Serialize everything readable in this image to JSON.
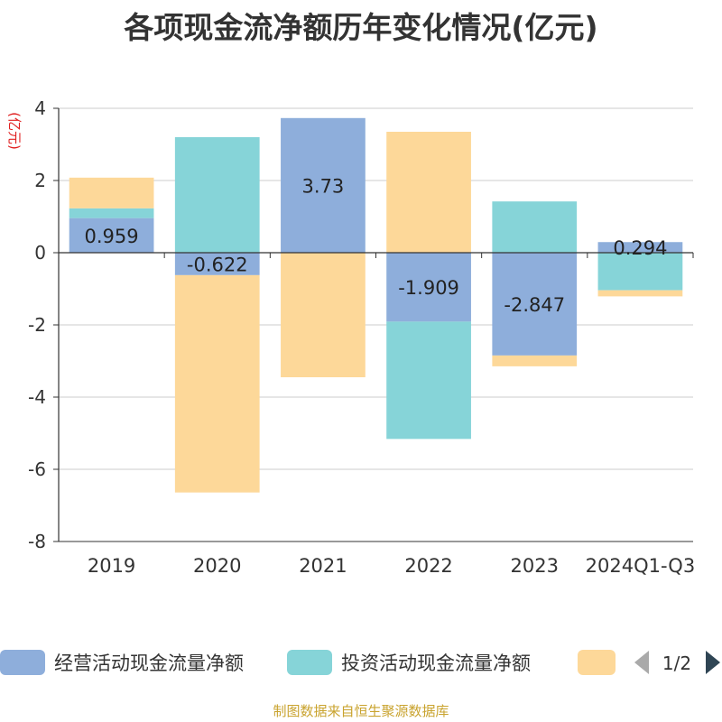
{
  "chart_data": {
    "type": "bar",
    "stacked": true,
    "title": "各项现金流净额历年变化情况(亿元)",
    "ylabel": "(亿元)",
    "ylim": [
      -8,
      4
    ],
    "yticks": [
      4,
      2,
      0,
      -2,
      -4,
      -6,
      -8
    ],
    "grid": true,
    "legend_position": "bottom",
    "categories": [
      "2019",
      "2020",
      "2021",
      "2022",
      "2023",
      "2024Q1-Q3"
    ],
    "series": [
      {
        "name": "经营活动现金流量净额",
        "color": "#8eaedb",
        "values": [
          0.959,
          -0.622,
          3.73,
          -1.909,
          -2.847,
          0.294
        ],
        "labels": [
          "0.959",
          "-0.622",
          "3.73",
          "-1.909",
          "-2.847",
          "0.294"
        ]
      },
      {
        "name": "投资活动现金流量净额",
        "color": "#86d4d8",
        "values": [
          0.27,
          3.2,
          0,
          -3.25,
          1.42,
          -1.04
        ]
      },
      {
        "name": "",
        "color": "#fdd899",
        "values": [
          0.85,
          -6.02,
          -3.45,
          3.35,
          -0.3,
          -0.17
        ]
      }
    ]
  },
  "legend": {
    "page": "1/2",
    "prev_icon": "triangle-left-icon",
    "next_icon": "triangle-right-icon"
  },
  "footer": {
    "source": "制图数据来自恒生聚源数据库"
  }
}
